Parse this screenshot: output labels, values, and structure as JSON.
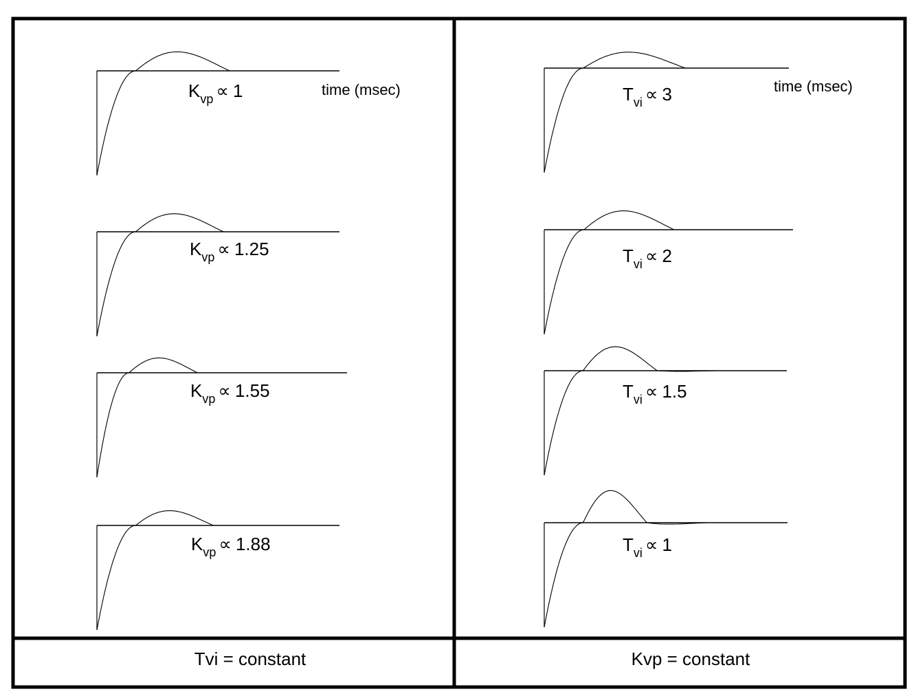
{
  "time_axis_label": "time (msec)",
  "prop_symbol": "∝",
  "left_panel": {
    "caption": "Tvi = constant",
    "symbol": "K",
    "subscript": "vp",
    "plots": [
      {
        "value": "1",
        "overshoot": 0.24,
        "decay": 0.42,
        "undershoot": 0,
        "show_time_label": true
      },
      {
        "value": "1.25",
        "overshoot": 0.23,
        "decay": 0.52,
        "undershoot": 0,
        "show_time_label": false
      },
      {
        "value": "1.55",
        "overshoot": 0.19,
        "decay": 0.62,
        "undershoot": 0,
        "show_time_label": false
      },
      {
        "value": "1.88",
        "overshoot": 0.19,
        "decay": 0.72,
        "undershoot": 0,
        "show_time_label": false
      }
    ]
  },
  "right_panel": {
    "caption": "Kvp = constant",
    "symbol": "T",
    "subscript": "vi",
    "plots": [
      {
        "value": "3",
        "overshoot": 0.2,
        "decay": 0.32,
        "undershoot": 0,
        "show_time_label": true
      },
      {
        "value": "2",
        "overshoot": 0.24,
        "decay": 0.52,
        "undershoot": 0,
        "show_time_label": false
      },
      {
        "value": "1.5",
        "overshoot": 0.31,
        "decay": 0.8,
        "undershoot": 0.02,
        "show_time_label": false
      },
      {
        "value": "1",
        "overshoot": 0.42,
        "decay": 1.1,
        "undershoot": 0.05,
        "show_time_label": false
      }
    ]
  }
}
